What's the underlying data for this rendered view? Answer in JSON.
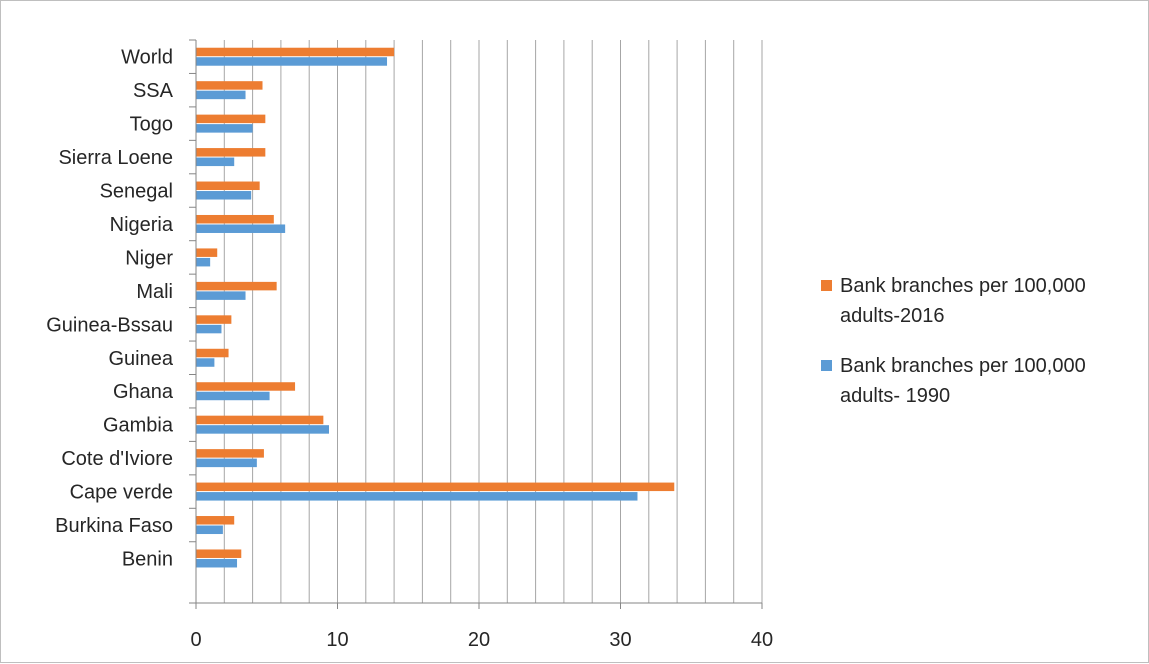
{
  "chart_data": {
    "type": "bar",
    "orientation": "horizontal",
    "categories": [
      "World",
      "SSA",
      "Togo",
      "Sierra Loene",
      "Senegal",
      "Nigeria",
      "Niger",
      "Mali",
      "Guinea-Bssau",
      "Guinea",
      "Ghana",
      "Gambia",
      "Cote d'Iviore",
      "Cape verde",
      "Burkina Faso",
      "Benin"
    ],
    "series": [
      {
        "name": "Bank branches per 100,000 adults-2016",
        "legend_lines": [
          "Bank branches per 100,000",
          "adults-2016"
        ],
        "color": "#ED7D31",
        "values": [
          14.0,
          4.7,
          4.9,
          4.9,
          4.5,
          5.5,
          1.5,
          5.7,
          2.5,
          2.3,
          7.0,
          9.0,
          4.8,
          33.8,
          2.7,
          3.2
        ]
      },
      {
        "name": "Bank branches per 100,000 adults- 1990",
        "legend_lines": [
          "Bank branches per 100,000",
          "adults- 1990"
        ],
        "color": "#5B9BD5",
        "values": [
          13.5,
          3.5,
          4.0,
          2.7,
          3.9,
          6.3,
          1.0,
          3.5,
          1.8,
          1.3,
          5.2,
          9.4,
          4.3,
          31.2,
          1.9,
          2.9
        ]
      }
    ],
    "xlim": [
      0,
      40
    ],
    "xticks": [
      0,
      10,
      20,
      30,
      40
    ],
    "grid": "vertical",
    "legend_position": "right",
    "title": "",
    "xlabel": "",
    "ylabel": ""
  }
}
